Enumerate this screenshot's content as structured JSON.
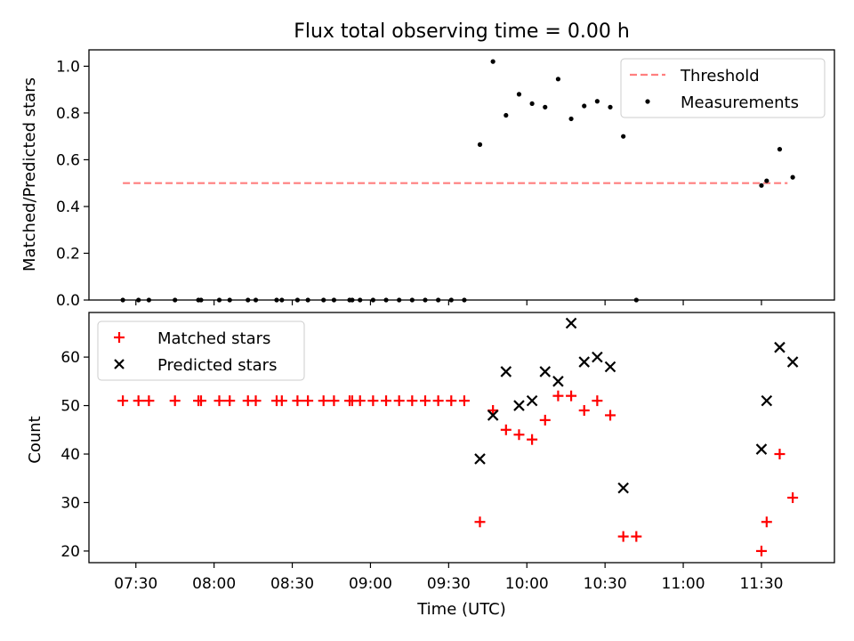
{
  "figure": {
    "background": "#ffffff"
  },
  "chart_data": [
    {
      "panel": "top",
      "type": "scatter",
      "title": "Flux total observing time = 0.00 h",
      "ylabel": "Matched/Predicted stars",
      "xlabel": "",
      "xlim": [
        "07:12",
        "11:58"
      ],
      "ylim": [
        0,
        1.07
      ],
      "yticks": [
        0.0,
        0.2,
        0.4,
        0.6,
        0.8,
        1.0
      ],
      "ytick_labels": [
        "0.0",
        "0.2",
        "0.4",
        "0.6",
        "0.8",
        "1.0"
      ],
      "xticks": [
        "07:30",
        "08:00",
        "08:30",
        "09:00",
        "09:30",
        "10:00",
        "10:30",
        "11:00",
        "11:30"
      ],
      "show_xtick_labels": false,
      "grid": false,
      "legend": {
        "placement": "top-right",
        "entries": [
          "Threshold",
          "Measurements"
        ]
      },
      "series": [
        {
          "name": "Threshold",
          "kind": "dashed-line",
          "color": "#ff7f7f",
          "x": [
            "07:25",
            "11:40"
          ],
          "y": [
            0.5,
            0.5
          ]
        },
        {
          "name": "Measurements",
          "kind": "dot",
          "color": "#000000",
          "x": [
            "07:25",
            "07:31",
            "07:35",
            "07:45",
            "07:54",
            "07:55",
            "08:02",
            "08:06",
            "08:13",
            "08:16",
            "08:24",
            "08:26",
            "08:32",
            "08:36",
            "08:42",
            "08:46",
            "08:52",
            "08:53",
            "08:56",
            "09:01",
            "09:06",
            "09:11",
            "09:16",
            "09:21",
            "09:26",
            "09:31",
            "09:36",
            "09:42",
            "09:47",
            "09:52",
            "09:57",
            "10:02",
            "10:07",
            "10:12",
            "10:17",
            "10:22",
            "10:27",
            "10:32",
            "10:37",
            "10:42",
            "11:30",
            "11:32",
            "11:37",
            "11:42"
          ],
          "y": [
            0,
            0,
            0,
            0,
            0,
            0,
            0,
            0,
            0,
            0,
            0,
            0,
            0,
            0,
            0,
            0,
            0,
            0,
            0,
            0,
            0,
            0,
            0,
            0,
            0,
            0,
            0,
            0.665,
            1.02,
            0.79,
            0.88,
            0.84,
            0.825,
            0.945,
            0.775,
            0.83,
            0.85,
            0.825,
            0.7,
            0,
            0.49,
            0.51,
            0.645,
            0.525
          ]
        }
      ]
    },
    {
      "panel": "bottom",
      "type": "scatter",
      "title": "",
      "ylabel": "Count",
      "xlabel": "Time (UTC)",
      "xlim": [
        "07:12",
        "11:58"
      ],
      "ylim": [
        17.6,
        69.2
      ],
      "yticks": [
        20,
        30,
        40,
        50,
        60
      ],
      "ytick_labels": [
        "20",
        "30",
        "40",
        "50",
        "60"
      ],
      "xticks": [
        "07:30",
        "08:00",
        "08:30",
        "09:00",
        "09:30",
        "10:00",
        "10:30",
        "11:00",
        "11:30"
      ],
      "xtick_labels": [
        "07:30",
        "08:00",
        "08:30",
        "09:00",
        "09:30",
        "10:00",
        "10:30",
        "11:00",
        "11:30"
      ],
      "show_xtick_labels": true,
      "grid": false,
      "legend": {
        "placement": "top-left",
        "entries": [
          "Matched stars",
          "Predicted stars"
        ]
      },
      "series": [
        {
          "name": "Matched stars",
          "kind": "plus",
          "color": "#ff0000",
          "x": [
            "07:25",
            "07:31",
            "07:35",
            "07:45",
            "07:54",
            "07:55",
            "08:02",
            "08:06",
            "08:13",
            "08:16",
            "08:24",
            "08:26",
            "08:32",
            "08:36",
            "08:42",
            "08:46",
            "08:52",
            "08:53",
            "08:56",
            "09:01",
            "09:06",
            "09:11",
            "09:16",
            "09:21",
            "09:26",
            "09:31",
            "09:36",
            "09:42",
            "09:47",
            "09:52",
            "09:57",
            "10:02",
            "10:07",
            "10:12",
            "10:17",
            "10:22",
            "10:27",
            "10:32",
            "10:37",
            "10:42",
            "11:30",
            "11:32",
            "11:37",
            "11:42"
          ],
          "y": [
            51,
            51,
            51,
            51,
            51,
            51,
            51,
            51,
            51,
            51,
            51,
            51,
            51,
            51,
            51,
            51,
            51,
            51,
            51,
            51,
            51,
            51,
            51,
            51,
            51,
            51,
            51,
            26,
            49,
            45,
            44,
            43,
            47,
            52,
            52,
            49,
            51,
            48,
            23,
            23,
            20,
            26,
            40,
            31
          ]
        },
        {
          "name": "Predicted stars",
          "kind": "x",
          "color": "#000000",
          "x": [
            "09:42",
            "09:47",
            "09:52",
            "09:57",
            "10:02",
            "10:07",
            "10:12",
            "10:17",
            "10:22",
            "10:27",
            "10:32",
            "10:37",
            "11:30",
            "11:32",
            "11:37",
            "11:42"
          ],
          "y": [
            39,
            48,
            57,
            50,
            51,
            57,
            55,
            67,
            59,
            60,
            58,
            33,
            41,
            51,
            62,
            59
          ]
        }
      ]
    }
  ]
}
